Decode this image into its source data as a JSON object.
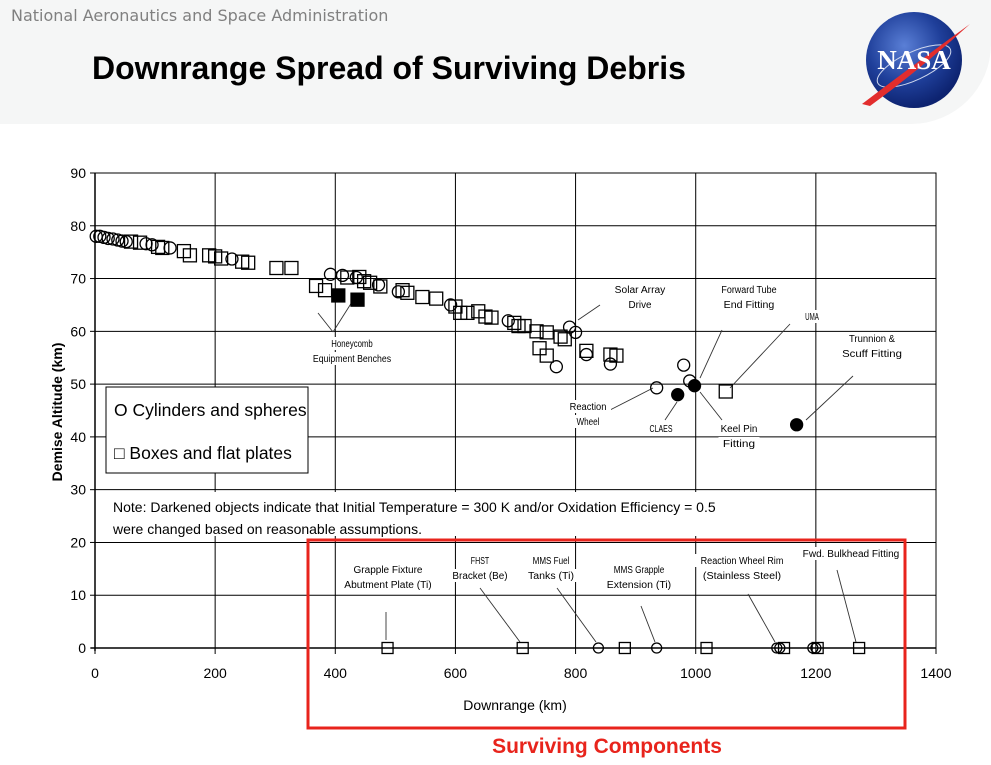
{
  "header": {
    "org_name": "National Aeronautics and Space Administration",
    "title": "Downrange Spread of Surviving Debris",
    "logo_text": "NASA"
  },
  "caption": "Surviving Components",
  "colors": {
    "accent": "#e8241c",
    "logo_blue": "#1f3f9a",
    "logo_red": "#e22d2d"
  },
  "chart_data": {
    "type": "scatter",
    "title": "",
    "xlabel": "Downrange (km)",
    "ylabel": "Demise Altitude (km)",
    "xlim": [
      0,
      1400
    ],
    "ylim": [
      0,
      90
    ],
    "xticks": [
      0,
      200,
      400,
      600,
      800,
      1000,
      1200,
      1400
    ],
    "yticks": [
      0,
      10,
      20,
      30,
      40,
      50,
      60,
      70,
      80,
      90
    ],
    "grid": true,
    "legend": {
      "placement": "center-left",
      "entries": [
        "O Cylinders and spheres",
        "□ Boxes and flat plates"
      ]
    },
    "note_lines": [
      "Note: Darkened objects indicate that Initial Temperature = 300 K and/or Oxidation Efficiency = 0.5",
      "were changed based on reasonable assumptions."
    ],
    "series": [
      {
        "name": "Cylinders and spheres",
        "marker": "circle",
        "filled": false,
        "points": [
          [
            2,
            78
          ],
          [
            8,
            78
          ],
          [
            15,
            77.8
          ],
          [
            22,
            77.6
          ],
          [
            30,
            77.5
          ],
          [
            38,
            77.3
          ],
          [
            45,
            77.1
          ],
          [
            52,
            77
          ],
          [
            85,
            76.6
          ],
          [
            95,
            76.4
          ],
          [
            125,
            75.8
          ],
          [
            228,
            73.7
          ],
          [
            392,
            70.8
          ],
          [
            412,
            70.6
          ],
          [
            435,
            70.2
          ],
          [
            472,
            68.8
          ],
          [
            505,
            67.5
          ],
          [
            592,
            65
          ],
          [
            688,
            62
          ],
          [
            790,
            60.8
          ],
          [
            800,
            59.8
          ],
          [
            768,
            53.3
          ],
          [
            818,
            55.6
          ],
          [
            858,
            53.8
          ],
          [
            935,
            49.3
          ],
          [
            980,
            53.6
          ],
          [
            990,
            50.6
          ]
        ]
      },
      {
        "name": "Boxes and flat plates",
        "marker": "square",
        "filled": false,
        "points": [
          [
            60,
            77
          ],
          [
            75,
            76.8
          ],
          [
            105,
            76
          ],
          [
            112,
            75.8
          ],
          [
            148,
            75.2
          ],
          [
            158,
            74.4
          ],
          [
            190,
            74.4
          ],
          [
            200,
            74.2
          ],
          [
            210,
            73.8
          ],
          [
            245,
            73.2
          ],
          [
            255,
            73
          ],
          [
            302,
            72
          ],
          [
            327,
            72
          ],
          [
            368,
            68.6
          ],
          [
            383,
            67.8
          ],
          [
            420,
            70.2
          ],
          [
            440,
            70.3
          ],
          [
            448,
            69.5
          ],
          [
            458,
            69.2
          ],
          [
            475,
            68.5
          ],
          [
            512,
            67.8
          ],
          [
            520,
            67.3
          ],
          [
            545,
            66.5
          ],
          [
            568,
            66.2
          ],
          [
            600,
            64.7
          ],
          [
            608,
            63.5
          ],
          [
            620,
            63.5
          ],
          [
            638,
            63.8
          ],
          [
            650,
            62.8
          ],
          [
            660,
            62.6
          ],
          [
            698,
            61.6
          ],
          [
            705,
            61
          ],
          [
            715,
            61
          ],
          [
            735,
            60
          ],
          [
            740,
            56.8
          ],
          [
            752,
            55.4
          ],
          [
            752,
            59.8
          ],
          [
            775,
            59
          ],
          [
            782,
            58.5
          ],
          [
            818,
            56.3
          ],
          [
            858,
            55.6
          ],
          [
            868,
            55.4
          ],
          [
            1050,
            48.6
          ]
        ]
      },
      {
        "name": "Darkened cylinders and spheres",
        "marker": "circle",
        "filled": true,
        "points": [
          [
            970,
            48
          ],
          [
            998,
            49.7
          ],
          [
            1168,
            42.3
          ]
        ]
      },
      {
        "name": "Darkened boxes and flat plates",
        "marker": "square",
        "filled": true,
        "points": [
          [
            405,
            66.8
          ],
          [
            437,
            66
          ]
        ]
      },
      {
        "name": "Surviving components (circles)",
        "marker": "circle",
        "filled": false,
        "points": [
          [
            838,
            0
          ],
          [
            935,
            0
          ],
          [
            1135,
            0
          ],
          [
            1140,
            0
          ],
          [
            1195,
            0
          ],
          [
            1200,
            0
          ]
        ]
      },
      {
        "name": "Surviving components (squares)",
        "marker": "square",
        "filled": false,
        "points": [
          [
            487,
            0
          ],
          [
            712,
            0
          ],
          [
            882,
            0
          ],
          [
            1018,
            0
          ],
          [
            1147,
            0
          ],
          [
            1203,
            0
          ],
          [
            1272,
            0
          ]
        ]
      }
    ],
    "annotations": [
      {
        "lines": [
          "Honeycomb",
          "Equipment Benches"
        ],
        "points_to": [
          [
            405,
            66.8
          ],
          [
            437,
            66
          ]
        ]
      },
      {
        "lines": [
          "Solar Array",
          "Drive"
        ],
        "points_to": [
          [
            800,
            59.8
          ]
        ]
      },
      {
        "lines": [
          "Forward Tube",
          "End Fitting"
        ],
        "points_to": [
          [
            998,
            49.7
          ]
        ]
      },
      {
        "lines": [
          "UMA"
        ],
        "points_to": [
          [
            1050,
            48.6
          ]
        ]
      },
      {
        "lines": [
          "Trunnion &",
          "Scuff Fitting"
        ],
        "points_to": [
          [
            1168,
            42.3
          ]
        ]
      },
      {
        "lines": [
          "Reaction",
          "Wheel"
        ],
        "points_to": [
          [
            935,
            49.3
          ]
        ]
      },
      {
        "lines": [
          "CLAES"
        ],
        "points_to": [
          [
            970,
            48
          ]
        ]
      },
      {
        "lines": [
          "Keel Pin",
          "Fitting"
        ],
        "points_to": [
          [
            998,
            49.7
          ]
        ]
      },
      {
        "lines": [
          "Grapple Fixture",
          "Abutment Plate (Ti)"
        ],
        "points_to": [
          [
            487,
            0
          ]
        ]
      },
      {
        "lines": [
          "FHST",
          "Bracket (Be)"
        ],
        "points_to": [
          [
            712,
            0
          ]
        ]
      },
      {
        "lines": [
          "MMS Fuel",
          "Tanks (Ti)"
        ],
        "points_to": [
          [
            838,
            0
          ]
        ]
      },
      {
        "lines": [
          "MMS Grapple",
          "Extension (Ti)"
        ],
        "points_to": [
          [
            935,
            0
          ]
        ]
      },
      {
        "lines": [
          "Reaction Wheel Rim",
          "(Stainless Steel)"
        ],
        "points_to": [
          [
            1135,
            0
          ]
        ]
      },
      {
        "lines": [
          "Fwd. Bulkhead Fitting"
        ],
        "points_to": [
          [
            1272,
            0
          ]
        ]
      }
    ]
  }
}
